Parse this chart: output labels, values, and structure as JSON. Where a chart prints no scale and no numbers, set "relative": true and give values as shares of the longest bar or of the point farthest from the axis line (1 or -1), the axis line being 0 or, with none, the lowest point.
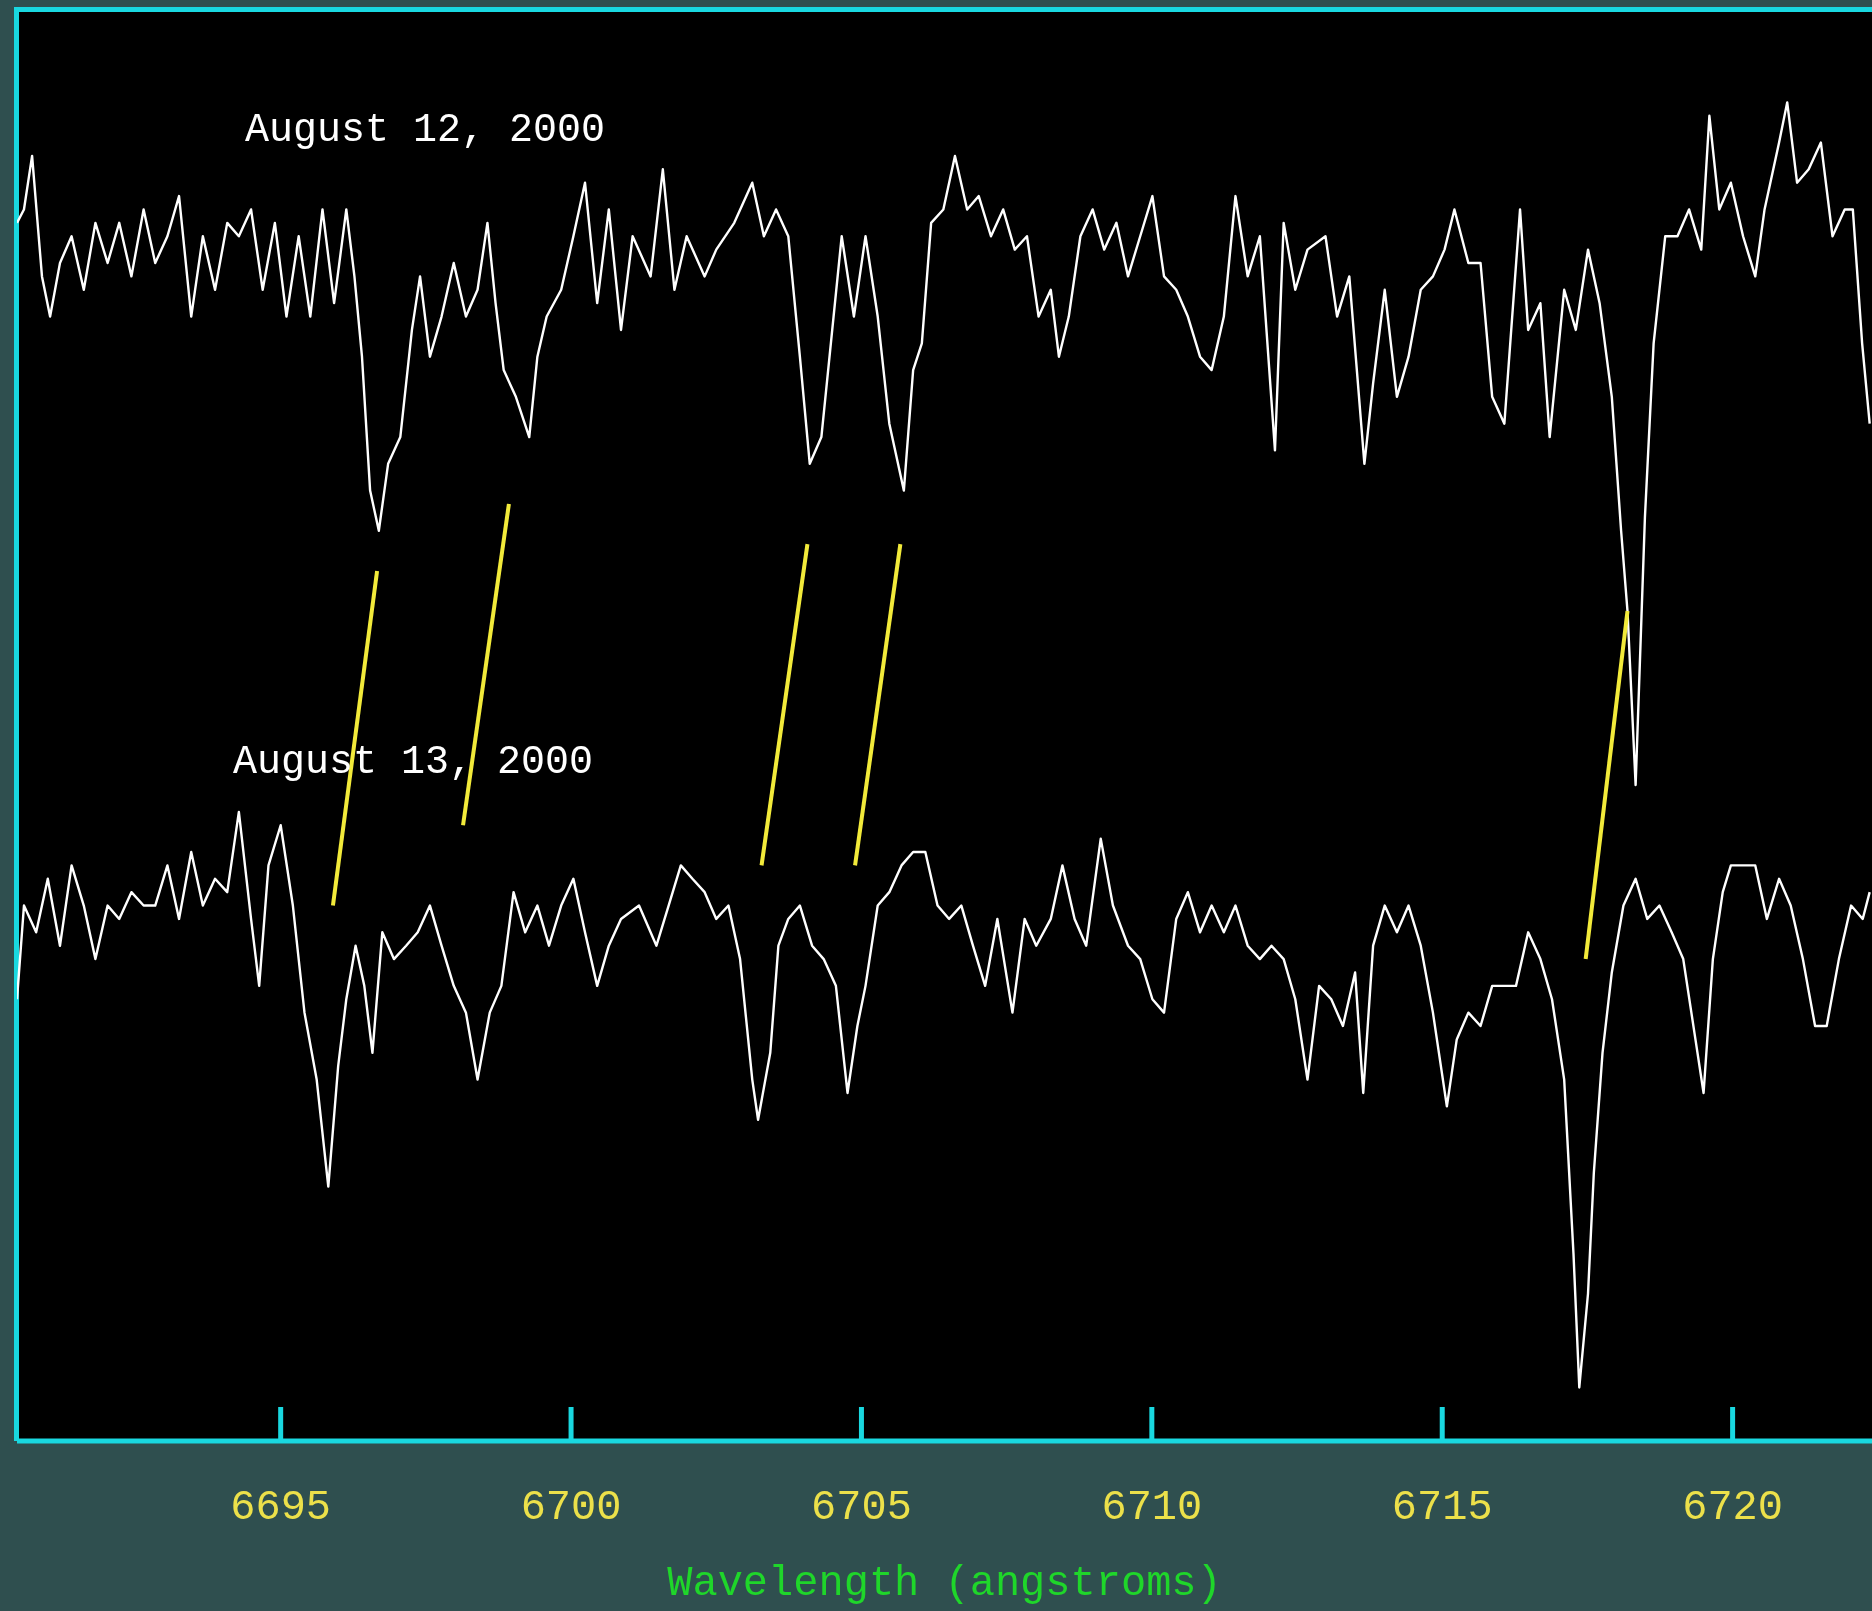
{
  "chart_data": {
    "type": "line",
    "relative": true,
    "xlabel": "Wavelength (angstroms)",
    "xlim": [
      6690.46,
      6722.4
    ],
    "xticks": [
      6695,
      6700,
      6705,
      6710,
      6715,
      6720
    ],
    "grid": false,
    "legend": false,
    "marker": "none",
    "series": [
      {
        "name": "August 12, 2000",
        "color": "#ffffff",
        "x": [
          6690.46,
          6690.58,
          6690.72,
          6690.89,
          6691.03,
          6691.2,
          6691.4,
          6691.61,
          6691.81,
          6692.02,
          6692.22,
          6692.43,
          6692.64,
          6692.84,
          6693.05,
          6693.25,
          6693.46,
          6693.66,
          6693.87,
          6694.08,
          6694.28,
          6694.49,
          6694.69,
          6694.9,
          6695.1,
          6695.31,
          6695.51,
          6695.72,
          6695.92,
          6696.13,
          6696.27,
          6696.4,
          6696.54,
          6696.69,
          6696.85,
          6697.06,
          6697.26,
          6697.4,
          6697.57,
          6697.77,
          6697.98,
          6698.19,
          6698.39,
          6698.56,
          6698.7,
          6698.84,
          6699.05,
          6699.28,
          6699.42,
          6699.58,
          6699.83,
          6700.04,
          6700.24,
          6700.45,
          6700.65,
          6700.86,
          6701.06,
          6701.37,
          6701.58,
          6701.78,
          6701.99,
          6702.3,
          6702.5,
          6702.81,
          6703.12,
          6703.32,
          6703.53,
          6703.74,
          6703.94,
          6704.11,
          6704.31,
          6704.52,
          6704.66,
          6704.87,
          6705.07,
          6705.28,
          6705.48,
          6705.73,
          6705.89,
          6706.04,
          6706.2,
          6706.41,
          6706.61,
          6706.82,
          6707.02,
          6707.23,
          6707.44,
          6707.64,
          6707.85,
          6708.05,
          6708.26,
          6708.4,
          6708.57,
          6708.77,
          6708.98,
          6709.18,
          6709.39,
          6709.59,
          6709.8,
          6710.01,
          6710.21,
          6710.42,
          6710.62,
          6710.83,
          6711.03,
          6711.24,
          6711.44,
          6711.65,
          6711.86,
          6712.12,
          6712.27,
          6712.47,
          6712.68,
          6712.99,
          6713.19,
          6713.4,
          6713.66,
          6713.81,
          6714.01,
          6714.22,
          6714.42,
          6714.63,
          6714.84,
          6715.04,
          6715.21,
          6715.45,
          6715.66,
          6715.86,
          6716.07,
          6716.34,
          6716.48,
          6716.69,
          6716.85,
          6717.1,
          6717.3,
          6717.51,
          6717.71,
          6717.92,
          6718.08,
          6718.19,
          6718.33,
          6718.49,
          6718.64,
          6718.84,
          6719.05,
          6719.25,
          6719.46,
          6719.6,
          6719.77,
          6719.97,
          6720.18,
          6720.39,
          6720.55,
          6720.8,
          6720.94,
          6721.11,
          6721.31,
          6721.52,
          6721.72,
          6721.93,
          6722.07,
          6722.23,
          6722.36
        ],
        "values": [
          0.91,
          0.92,
          0.96,
          0.87,
          0.84,
          0.88,
          0.9,
          0.86,
          0.91,
          0.88,
          0.91,
          0.87,
          0.92,
          0.88,
          0.9,
          0.93,
          0.84,
          0.9,
          0.86,
          0.91,
          0.9,
          0.92,
          0.86,
          0.91,
          0.84,
          0.9,
          0.84,
          0.92,
          0.85,
          0.92,
          0.87,
          0.81,
          0.71,
          0.68,
          0.73,
          0.75,
          0.83,
          0.87,
          0.81,
          0.84,
          0.88,
          0.84,
          0.86,
          0.91,
          0.85,
          0.8,
          0.78,
          0.75,
          0.81,
          0.84,
          0.86,
          0.9,
          0.94,
          0.85,
          0.92,
          0.83,
          0.9,
          0.87,
          0.95,
          0.86,
          0.9,
          0.87,
          0.89,
          0.91,
          0.94,
          0.9,
          0.92,
          0.9,
          0.81,
          0.73,
          0.75,
          0.84,
          0.9,
          0.84,
          0.9,
          0.84,
          0.76,
          0.71,
          0.8,
          0.82,
          0.91,
          0.92,
          0.96,
          0.92,
          0.93,
          0.9,
          0.92,
          0.89,
          0.9,
          0.84,
          0.86,
          0.81,
          0.84,
          0.9,
          0.92,
          0.89,
          0.91,
          0.87,
          0.9,
          0.93,
          0.87,
          0.86,
          0.84,
          0.81,
          0.8,
          0.84,
          0.93,
          0.87,
          0.9,
          0.74,
          0.91,
          0.86,
          0.89,
          0.9,
          0.84,
          0.87,
          0.73,
          0.79,
          0.86,
          0.78,
          0.81,
          0.86,
          0.87,
          0.89,
          0.92,
          0.88,
          0.88,
          0.78,
          0.76,
          0.92,
          0.83,
          0.85,
          0.75,
          0.86,
          0.83,
          0.89,
          0.85,
          0.78,
          0.68,
          0.62,
          0.49,
          0.69,
          0.82,
          0.9,
          0.9,
          0.92,
          0.89,
          0.99,
          0.92,
          0.94,
          0.9,
          0.87,
          0.92,
          0.97,
          1,
          0.94,
          0.95,
          0.97,
          0.9,
          0.92,
          0.92,
          0.82,
          0.76
        ]
      },
      {
        "name": "August 13, 2000",
        "color": "#ffffff",
        "x": [
          6690.46,
          6690.58,
          6690.79,
          6690.99,
          6691.2,
          6691.4,
          6691.61,
          6691.81,
          6692.02,
          6692.22,
          6692.43,
          6692.64,
          6692.84,
          6693.05,
          6693.25,
          6693.46,
          6693.66,
          6693.87,
          6694.08,
          6694.28,
          6694.49,
          6694.63,
          6694.79,
          6695,
          6695.21,
          6695.41,
          6695.62,
          6695.82,
          6695.99,
          6696.13,
          6696.29,
          6696.44,
          6696.58,
          6696.75,
          6696.95,
          6697.16,
          6697.36,
          6697.57,
          6697.77,
          6697.98,
          6698.19,
          6698.39,
          6698.6,
          6698.8,
          6699.01,
          6699.21,
          6699.42,
          6699.62,
          6699.83,
          6700.04,
          6700.24,
          6700.45,
          6700.65,
          6700.86,
          6701.17,
          6701.47,
          6701.68,
          6701.89,
          6702.09,
          6702.3,
          6702.5,
          6702.71,
          6702.91,
          6703.12,
          6703.22,
          6703.43,
          6703.57,
          6703.74,
          6703.94,
          6704.15,
          6704.35,
          6704.56,
          6704.76,
          6704.93,
          6705.07,
          6705.28,
          6705.48,
          6705.69,
          6705.89,
          6706.1,
          6706.31,
          6706.51,
          6706.72,
          6706.92,
          6707.13,
          6707.34,
          6707.6,
          6707.81,
          6708.01,
          6708.26,
          6708.46,
          6708.67,
          6708.87,
          6709.12,
          6709.33,
          6709.59,
          6709.8,
          6710.01,
          6710.21,
          6710.42,
          6710.62,
          6710.83,
          6711.03,
          6711.24,
          6711.44,
          6711.65,
          6711.86,
          6712.06,
          6712.27,
          6712.47,
          6712.68,
          6712.88,
          6713.09,
          6713.29,
          6713.5,
          6713.64,
          6713.81,
          6714.01,
          6714.22,
          6714.42,
          6714.63,
          6714.84,
          6715.08,
          6715.25,
          6715.45,
          6715.66,
          6715.86,
          6716.07,
          6716.27,
          6716.48,
          6716.69,
          6716.89,
          6717.1,
          6717.26,
          6717.36,
          6717.51,
          6717.61,
          6717.76,
          6717.92,
          6718.12,
          6718.33,
          6718.53,
          6718.74,
          6718.95,
          6719.15,
          6719.36,
          6719.5,
          6719.66,
          6719.83,
          6719.97,
          6720.18,
          6720.39,
          6720.59,
          6720.8,
          6721,
          6721.21,
          6721.42,
          6721.62,
          6721.83,
          6722.04,
          6722.24,
          6722.36
        ],
        "values": [
          0.33,
          0.4,
          0.38,
          0.42,
          0.37,
          0.43,
          0.4,
          0.36,
          0.4,
          0.39,
          0.41,
          0.4,
          0.4,
          0.43,
          0.39,
          0.44,
          0.4,
          0.42,
          0.41,
          0.47,
          0.39,
          0.34,
          0.43,
          0.46,
          0.4,
          0.32,
          0.27,
          0.19,
          0.28,
          0.33,
          0.37,
          0.34,
          0.29,
          0.38,
          0.36,
          0.37,
          0.38,
          0.4,
          0.37,
          0.34,
          0.32,
          0.27,
          0.32,
          0.34,
          0.41,
          0.38,
          0.4,
          0.37,
          0.4,
          0.42,
          0.38,
          0.34,
          0.37,
          0.39,
          0.4,
          0.37,
          0.4,
          0.43,
          0.42,
          0.41,
          0.39,
          0.4,
          0.36,
          0.27,
          0.24,
          0.29,
          0.37,
          0.39,
          0.4,
          0.37,
          0.36,
          0.34,
          0.26,
          0.31,
          0.34,
          0.4,
          0.41,
          0.43,
          0.44,
          0.44,
          0.4,
          0.39,
          0.4,
          0.37,
          0.34,
          0.39,
          0.32,
          0.39,
          0.37,
          0.39,
          0.43,
          0.39,
          0.37,
          0.45,
          0.4,
          0.37,
          0.36,
          0.33,
          0.32,
          0.39,
          0.41,
          0.38,
          0.4,
          0.38,
          0.4,
          0.37,
          0.36,
          0.37,
          0.36,
          0.33,
          0.27,
          0.34,
          0.33,
          0.31,
          0.35,
          0.26,
          0.37,
          0.4,
          0.38,
          0.4,
          0.37,
          0.32,
          0.25,
          0.3,
          0.32,
          0.31,
          0.34,
          0.34,
          0.34,
          0.38,
          0.36,
          0.33,
          0.27,
          0.14,
          0.04,
          0.11,
          0.2,
          0.29,
          0.35,
          0.4,
          0.42,
          0.39,
          0.4,
          0.38,
          0.36,
          0.3,
          0.26,
          0.36,
          0.41,
          0.43,
          0.43,
          0.43,
          0.39,
          0.42,
          0.4,
          0.36,
          0.31,
          0.31,
          0.36,
          0.4,
          0.39,
          0.41
        ]
      },
      {
        "color": "#f2ea3a",
        "x": [
          6696.66,
          6695.9
        ],
        "values": [
          0.65,
          0.4
        ]
      },
      {
        "color": "#f2ea3a",
        "x": [
          6698.93,
          6698.14
        ],
        "values": [
          0.7,
          0.46
        ]
      },
      {
        "color": "#f2ea3a",
        "x": [
          6704.07,
          6703.28
        ],
        "values": [
          0.67,
          0.43
        ]
      },
      {
        "color": "#f2ea3a",
        "x": [
          6705.67,
          6704.89
        ],
        "values": [
          0.67,
          0.43
        ]
      },
      {
        "color": "#f2ea3a",
        "x": [
          6718.19,
          6717.47
        ],
        "values": [
          0.62,
          0.36
        ]
      }
    ]
  }
}
